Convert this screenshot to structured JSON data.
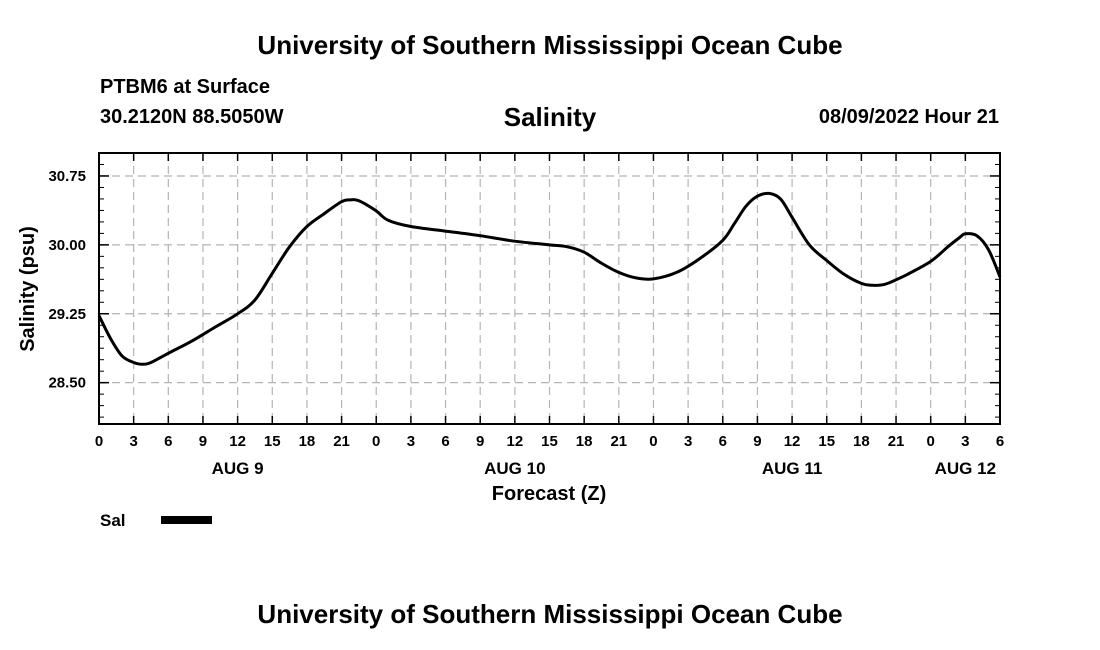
{
  "header": {
    "title": "University of Southern Mississippi Ocean Cube",
    "station": "PTBM6 at Surface",
    "coords": "30.2120N  88.5050W",
    "timestamp": "08/09/2022 Hour 21"
  },
  "footer": {
    "title": "University of Southern Mississippi Ocean Cube"
  },
  "colors": {
    "line": "#000000",
    "grid": "#b4b4b4",
    "frame": "#000000"
  },
  "chart_data": {
    "type": "line",
    "title": "Salinity",
    "xlabel": "Forecast (Z)",
    "ylabel": "Salinity (psu)",
    "xlim": [
      0,
      78
    ],
    "ylim": [
      28.05,
      31.0
    ],
    "yticks": [
      28.5,
      29.25,
      30.0,
      30.75
    ],
    "ytick_labels": [
      "28.50",
      "29.25",
      "30.00",
      "30.75"
    ],
    "xticks": [
      0,
      3,
      6,
      9,
      12,
      15,
      18,
      21,
      24,
      27,
      30,
      33,
      36,
      39,
      42,
      45,
      48,
      51,
      54,
      57,
      60,
      63,
      66,
      69,
      72,
      75,
      78
    ],
    "xtick_labels": [
      "0",
      "3",
      "6",
      "9",
      "12",
      "15",
      "18",
      "21",
      "0",
      "3",
      "6",
      "9",
      "12",
      "15",
      "18",
      "21",
      "0",
      "3",
      "6",
      "9",
      "12",
      "15",
      "18",
      "21",
      "0",
      "3",
      "6"
    ],
    "day_labels": [
      {
        "x": 12,
        "label": "AUG 9"
      },
      {
        "x": 36,
        "label": "AUG 10"
      },
      {
        "x": 60,
        "label": "AUG 11"
      },
      {
        "x": 75,
        "label": "AUG 12"
      }
    ],
    "legend": "bottom-left",
    "series": [
      {
        "name": "Sal",
        "x": [
          0,
          1,
          2,
          3,
          3.75,
          4.5,
          6,
          8,
          10,
          12,
          13.5,
          15,
          16.5,
          18,
          19.5,
          21,
          21.75,
          22.5,
          24,
          25,
          27,
          30,
          33,
          36,
          39,
          40.5,
          42,
          43.5,
          45,
          46.5,
          48,
          50,
          52,
          54,
          55,
          56,
          57,
          58,
          59,
          60,
          61.5,
          63,
          64.5,
          66,
          67,
          68,
          69,
          70,
          72,
          73.5,
          74.5,
          75,
          76,
          77,
          78
        ],
        "values": [
          29.23,
          28.98,
          28.79,
          28.72,
          28.7,
          28.72,
          28.82,
          28.95,
          29.1,
          29.25,
          29.4,
          29.69,
          29.98,
          30.2,
          30.34,
          30.47,
          30.49,
          30.48,
          30.37,
          30.27,
          30.2,
          30.15,
          30.1,
          30.04,
          30.0,
          29.98,
          29.92,
          29.8,
          29.7,
          29.64,
          29.63,
          29.7,
          29.85,
          30.05,
          30.23,
          30.42,
          30.53,
          30.56,
          30.5,
          30.3,
          30.0,
          29.83,
          29.68,
          29.58,
          29.56,
          29.57,
          29.62,
          29.68,
          29.82,
          29.98,
          30.08,
          30.12,
          30.1,
          29.95,
          29.65
        ]
      }
    ]
  }
}
